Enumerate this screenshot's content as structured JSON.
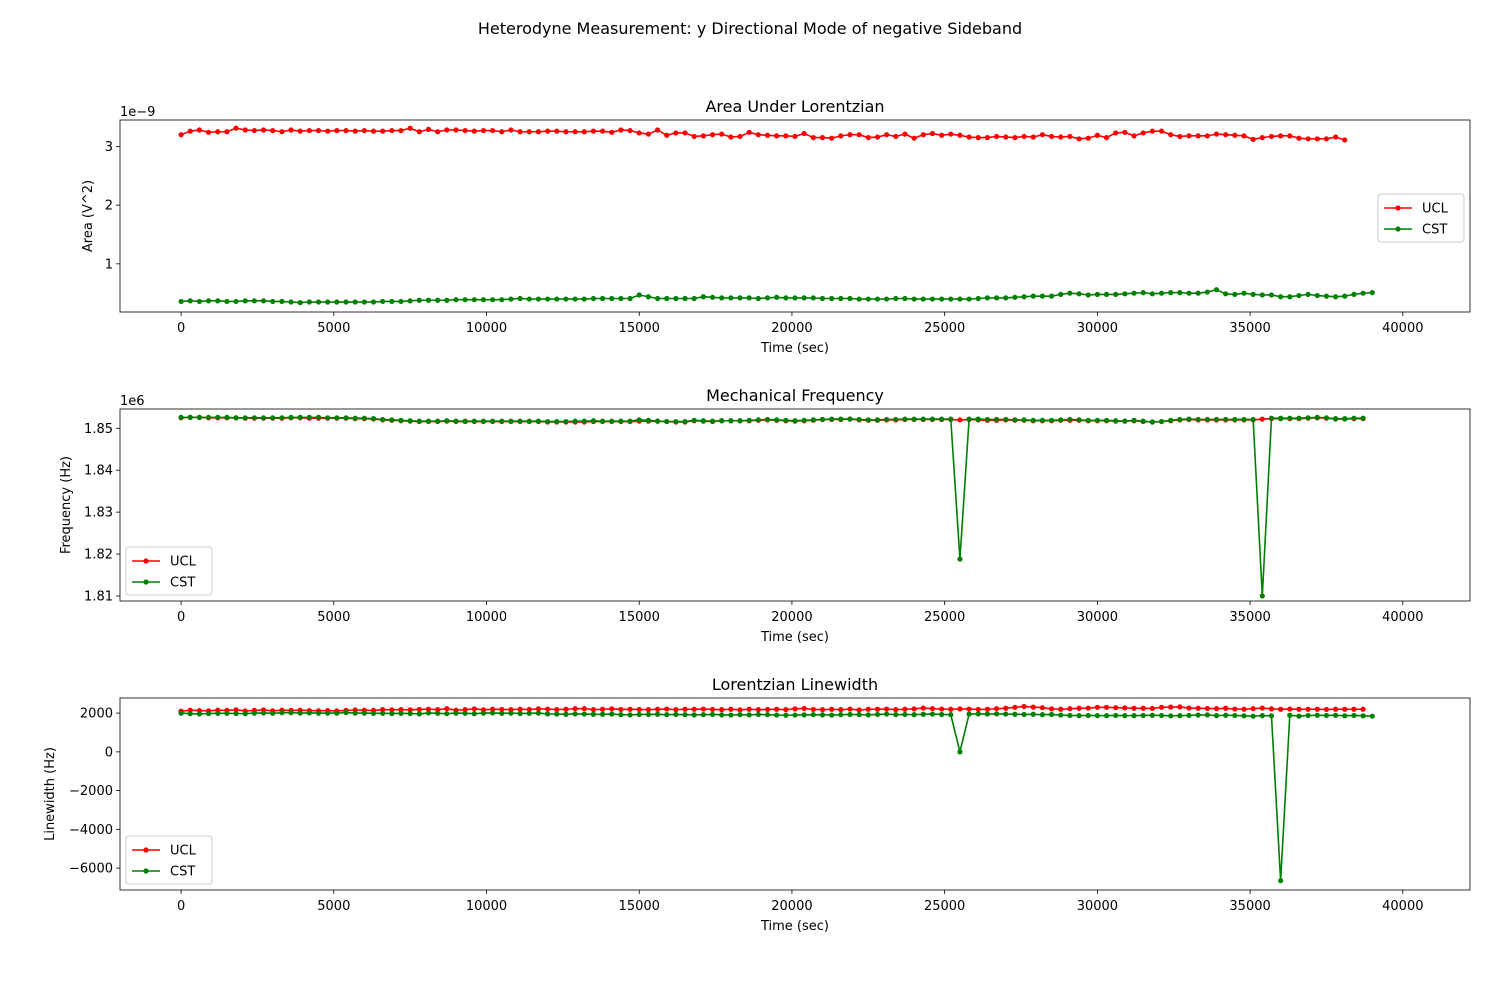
{
  "figure": {
    "title": "Heterodyne Measurement: y Directional Mode of negative Sideband"
  },
  "colors": {
    "UCL": "#ff0000",
    "CST": "#008000"
  },
  "chart_data": [
    {
      "type": "line",
      "title": "Area Under Lorentzian",
      "xlabel": "Time (sec)",
      "ylabel": "Area (V^2)",
      "offset_label": "1e−9",
      "x_range": [
        -2000,
        42200
      ],
      "y_range": [
        0.18,
        3.45
      ],
      "x_ticks": [
        0,
        5000,
        10000,
        15000,
        20000,
        25000,
        30000,
        35000,
        40000
      ],
      "x_tick_labels": [
        "0",
        "5000",
        "10000",
        "15000",
        "20000",
        "25000",
        "30000",
        "35000",
        "40000"
      ],
      "y_ticks": [
        1,
        2,
        3
      ],
      "y_tick_labels": [
        "1",
        "2",
        "3"
      ],
      "legend": "center-right",
      "series": [
        {
          "name": "UCL",
          "x_start": 0,
          "x_step": 300,
          "values": [
            3.2,
            3.26,
            3.28,
            3.24,
            3.25,
            3.25,
            3.31,
            3.28,
            3.27,
            3.28,
            3.27,
            3.25,
            3.28,
            3.26,
            3.27,
            3.27,
            3.26,
            3.27,
            3.27,
            3.26,
            3.27,
            3.26,
            3.26,
            3.27,
            3.27,
            3.31,
            3.25,
            3.29,
            3.25,
            3.28,
            3.28,
            3.27,
            3.26,
            3.27,
            3.27,
            3.25,
            3.28,
            3.25,
            3.25,
            3.25,
            3.26,
            3.26,
            3.25,
            3.25,
            3.25,
            3.26,
            3.26,
            3.24,
            3.28,
            3.27,
            3.23,
            3.21,
            3.28,
            3.19,
            3.23,
            3.23,
            3.17,
            3.18,
            3.2,
            3.21,
            3.16,
            3.17,
            3.24,
            3.2,
            3.19,
            3.18,
            3.18,
            3.17,
            3.22,
            3.15,
            3.15,
            3.14,
            3.18,
            3.2,
            3.2,
            3.15,
            3.16,
            3.2,
            3.17,
            3.21,
            3.14,
            3.2,
            3.22,
            3.19,
            3.21,
            3.19,
            3.16,
            3.15,
            3.15,
            3.17,
            3.16,
            3.15,
            3.17,
            3.16,
            3.2,
            3.17,
            3.16,
            3.17,
            3.13,
            3.14,
            3.19,
            3.15,
            3.23,
            3.24,
            3.18,
            3.23,
            3.26,
            3.26,
            3.2,
            3.17,
            3.18,
            3.18,
            3.18,
            3.21,
            3.2,
            3.19,
            3.18,
            3.12,
            3.15,
            3.17,
            3.18,
            3.18,
            3.14,
            3.13,
            3.13,
            3.13,
            3.16,
            3.11
          ]
        },
        {
          "name": "CST",
          "x_start": 0,
          "x_step": 300,
          "values": [
            0.36,
            0.37,
            0.36,
            0.37,
            0.37,
            0.36,
            0.36,
            0.37,
            0.37,
            0.37,
            0.36,
            0.36,
            0.35,
            0.34,
            0.35,
            0.35,
            0.35,
            0.35,
            0.35,
            0.35,
            0.35,
            0.35,
            0.36,
            0.36,
            0.36,
            0.37,
            0.38,
            0.38,
            0.38,
            0.38,
            0.39,
            0.39,
            0.39,
            0.39,
            0.39,
            0.39,
            0.4,
            0.41,
            0.4,
            0.4,
            0.4,
            0.4,
            0.4,
            0.4,
            0.4,
            0.41,
            0.41,
            0.41,
            0.41,
            0.41,
            0.47,
            0.44,
            0.41,
            0.41,
            0.41,
            0.41,
            0.41,
            0.44,
            0.43,
            0.42,
            0.42,
            0.42,
            0.42,
            0.41,
            0.42,
            0.43,
            0.42,
            0.42,
            0.42,
            0.42,
            0.41,
            0.41,
            0.41,
            0.41,
            0.4,
            0.4,
            0.4,
            0.4,
            0.41,
            0.41,
            0.4,
            0.4,
            0.4,
            0.4,
            0.4,
            0.4,
            0.4,
            0.41,
            0.42,
            0.42,
            0.42,
            0.43,
            0.44,
            0.45,
            0.45,
            0.45,
            0.48,
            0.5,
            0.49,
            0.47,
            0.48,
            0.48,
            0.48,
            0.49,
            0.5,
            0.51,
            0.49,
            0.5,
            0.51,
            0.51,
            0.5,
            0.5,
            0.52,
            0.56,
            0.49,
            0.48,
            0.5,
            0.48,
            0.47,
            0.47,
            0.44,
            0.44,
            0.46,
            0.48,
            0.46,
            0.45,
            0.44,
            0.45,
            0.48,
            0.5,
            0.51
          ]
        }
      ]
    },
    {
      "type": "line",
      "title": "Mechanical Frequency",
      "xlabel": "Time (sec)",
      "ylabel": "Frequency (Hz)",
      "offset_label": "1e6",
      "x_range": [
        -2000,
        42200
      ],
      "y_range": [
        1.8088,
        1.8546
      ],
      "x_ticks": [
        0,
        5000,
        10000,
        15000,
        20000,
        25000,
        30000,
        35000,
        40000
      ],
      "x_tick_labels": [
        "0",
        "5000",
        "10000",
        "15000",
        "20000",
        "25000",
        "30000",
        "35000",
        "40000"
      ],
      "y_ticks": [
        1.81,
        1.82,
        1.83,
        1.84,
        1.85
      ],
      "y_tick_labels": [
        "1.81",
        "1.82",
        "1.83",
        "1.84",
        "1.85"
      ],
      "legend": "lower-left",
      "series": [
        {
          "name": "UCL",
          "x_start": 0,
          "x_step": 300,
          "values": [
            1.8525,
            1.8526,
            1.8526,
            1.8525,
            1.8525,
            1.8525,
            1.8525,
            1.8524,
            1.8524,
            1.8524,
            1.8524,
            1.8524,
            1.8525,
            1.8525,
            1.8524,
            1.8524,
            1.8524,
            1.8524,
            1.8524,
            1.8523,
            1.8523,
            1.8522,
            1.852,
            1.8519,
            1.8518,
            1.8517,
            1.8516,
            1.8516,
            1.8516,
            1.8517,
            1.8516,
            1.8516,
            1.8516,
            1.8516,
            1.8516,
            1.8516,
            1.8516,
            1.8516,
            1.8516,
            1.8516,
            1.8515,
            1.8515,
            1.8515,
            1.8515,
            1.8515,
            1.8516,
            1.8516,
            1.8516,
            1.8516,
            1.8516,
            1.8517,
            1.8517,
            1.8517,
            1.8516,
            1.8515,
            1.8515,
            1.8518,
            1.8517,
            1.8516,
            1.8518,
            1.8518,
            1.8518,
            1.8518,
            1.8519,
            1.852,
            1.8519,
            1.8518,
            1.8517,
            1.8518,
            1.8519,
            1.8521,
            1.8521,
            1.8521,
            1.8522,
            1.852,
            1.8519,
            1.8519,
            1.852,
            1.852,
            1.8521,
            1.8521,
            1.8521,
            1.8521,
            1.8521,
            1.8521,
            1.852,
            1.8521,
            1.852,
            1.8519,
            1.8519,
            1.852,
            1.8519,
            1.8519,
            1.8518,
            1.8518,
            1.8518,
            1.8519,
            1.8519,
            1.8519,
            1.8518,
            1.8518,
            1.8518,
            1.8517,
            1.8517,
            1.8518,
            1.8516,
            1.8515,
            1.8516,
            1.8518,
            1.852,
            1.8521,
            1.852,
            1.852,
            1.852,
            1.852,
            1.852,
            1.852,
            1.852,
            1.8522,
            1.8523,
            1.8523,
            1.8523,
            1.8523,
            1.8524,
            1.8525,
            1.8524,
            1.8522,
            1.8522,
            1.8523,
            1.8523
          ]
        },
        {
          "name": "CST",
          "x_start": 0,
          "x_step": 300,
          "values": [
            1.8526,
            1.8526,
            1.8526,
            1.8526,
            1.8526,
            1.8526,
            1.8525,
            1.8525,
            1.8525,
            1.8525,
            1.8525,
            1.8525,
            1.8526,
            1.8526,
            1.8526,
            1.8526,
            1.8525,
            1.8525,
            1.8525,
            1.8524,
            1.8524,
            1.8523,
            1.8521,
            1.852,
            1.8519,
            1.8518,
            1.8517,
            1.8517,
            1.8517,
            1.8518,
            1.8517,
            1.8517,
            1.8517,
            1.8517,
            1.8517,
            1.8517,
            1.8517,
            1.8517,
            1.8517,
            1.8517,
            1.8516,
            1.8516,
            1.8516,
            1.8517,
            1.8517,
            1.8518,
            1.8517,
            1.8517,
            1.8517,
            1.8517,
            1.852,
            1.8519,
            1.8517,
            1.8516,
            1.8516,
            1.8516,
            1.8519,
            1.8518,
            1.8517,
            1.8518,
            1.8518,
            1.8518,
            1.8519,
            1.852,
            1.8521,
            1.852,
            1.8519,
            1.8518,
            1.8519,
            1.852,
            1.8521,
            1.8522,
            1.8522,
            1.8522,
            1.8521,
            1.852,
            1.852,
            1.8521,
            1.8521,
            1.8522,
            1.8522,
            1.8522,
            1.8522,
            1.8522,
            1.8522,
            1.8188,
            1.8522,
            1.8522,
            1.8521,
            1.8521,
            1.8521,
            1.852,
            1.852,
            1.8519,
            1.8519,
            1.8519,
            1.852,
            1.8521,
            1.852,
            1.8519,
            1.8519,
            1.8519,
            1.8518,
            1.8517,
            1.8519,
            1.8517,
            1.8515,
            1.8516,
            1.8519,
            1.8521,
            1.8522,
            1.8521,
            1.8521,
            1.8521,
            1.8521,
            1.8521,
            1.8521,
            1.8521,
            1.81,
            1.8524,
            1.8524,
            1.8524,
            1.8524,
            1.8525,
            1.8526,
            1.8525,
            1.8523,
            1.8523,
            1.8524,
            1.8524
          ]
        }
      ]
    },
    {
      "type": "line",
      "title": "Lorentzian Linewidth",
      "xlabel": "Time (sec)",
      "ylabel": "Linewidth (Hz)",
      "offset_label": "",
      "x_range": [
        -2000,
        42200
      ],
      "y_range": [
        -7130,
        2780
      ],
      "x_ticks": [
        0,
        5000,
        10000,
        15000,
        20000,
        25000,
        30000,
        35000,
        40000
      ],
      "x_tick_labels": [
        "0",
        "5000",
        "10000",
        "15000",
        "20000",
        "25000",
        "30000",
        "35000",
        "40000"
      ],
      "y_ticks": [
        -6000,
        -4000,
        -2000,
        0,
        2000
      ],
      "y_tick_labels": [
        "−6000",
        "−4000",
        "−2000",
        "0",
        "2000"
      ],
      "legend": "lower-left",
      "series": [
        {
          "name": "UCL",
          "x_start": 0,
          "x_step": 300,
          "values": [
            2100,
            2150,
            2130,
            2120,
            2150,
            2140,
            2170,
            2110,
            2140,
            2160,
            2120,
            2150,
            2140,
            2150,
            2130,
            2120,
            2130,
            2110,
            2140,
            2160,
            2150,
            2140,
            2180,
            2170,
            2180,
            2170,
            2190,
            2200,
            2180,
            2230,
            2150,
            2180,
            2220,
            2170,
            2200,
            2190,
            2180,
            2200,
            2190,
            2220,
            2210,
            2180,
            2200,
            2230,
            2230,
            2180,
            2200,
            2220,
            2190,
            2200,
            2190,
            2180,
            2200,
            2210,
            2180,
            2200,
            2200,
            2210,
            2190,
            2180,
            2200,
            2170,
            2200,
            2180,
            2190,
            2200,
            2180,
            2220,
            2240,
            2190,
            2180,
            2200,
            2180,
            2210,
            2160,
            2200,
            2200,
            2210,
            2180,
            2200,
            2220,
            2260,
            2230,
            2210,
            2200,
            2220,
            2210,
            2190,
            2200,
            2230,
            2250,
            2300,
            2340,
            2310,
            2280,
            2220,
            2200,
            2230,
            2250,
            2260,
            2300,
            2300,
            2280,
            2270,
            2250,
            2250,
            2240,
            2300,
            2310,
            2320,
            2260,
            2250,
            2240,
            2230,
            2250,
            2210,
            2200,
            2230,
            2260,
            2220,
            2200,
            2210,
            2200,
            2200,
            2200,
            2190,
            2200,
            2200,
            2200,
            2200
          ]
        },
        {
          "name": "CST",
          "x_start": 0,
          "x_step": 300,
          "values": [
            2000,
            1970,
            1960,
            1980,
            1990,
            1990,
            1980,
            1970,
            2000,
            2010,
            1990,
            2020,
            2020,
            2000,
            2010,
            2000,
            2000,
            2000,
            2030,
            2000,
            2000,
            1990,
            1990,
            1980,
            1990,
            1980,
            1960,
            2010,
            1990,
            1970,
            2000,
            1990,
            1970,
            2000,
            2010,
            1990,
            2000,
            1980,
            1990,
            2000,
            1960,
            1950,
            1940,
            1960,
            1950,
            1940,
            1940,
            1950,
            1920,
            1910,
            1930,
            1930,
            1940,
            1920,
            1930,
            1920,
            1910,
            1920,
            1930,
            1910,
            1900,
            1920,
            1910,
            1930,
            1920,
            1900,
            1890,
            1900,
            1910,
            1920,
            1910,
            1900,
            1920,
            1930,
            1920,
            1910,
            1930,
            1950,
            1920,
            1930,
            1920,
            1940,
            1950,
            1930,
            1920,
            0,
            1950,
            1960,
            1950,
            1960,
            1950,
            1940,
            1930,
            1940,
            1920,
            1930,
            1900,
            1880,
            1870,
            1880,
            1870,
            1870,
            1880,
            1870,
            1870,
            1880,
            1890,
            1880,
            1860,
            1870,
            1880,
            1900,
            1910,
            1870,
            1890,
            1880,
            1860,
            1840,
            1870,
            1860,
            -6650,
            1890,
            1840,
            1880,
            1890,
            1880,
            1890,
            1860,
            1880,
            1860,
            1840
          ]
        }
      ]
    }
  ]
}
